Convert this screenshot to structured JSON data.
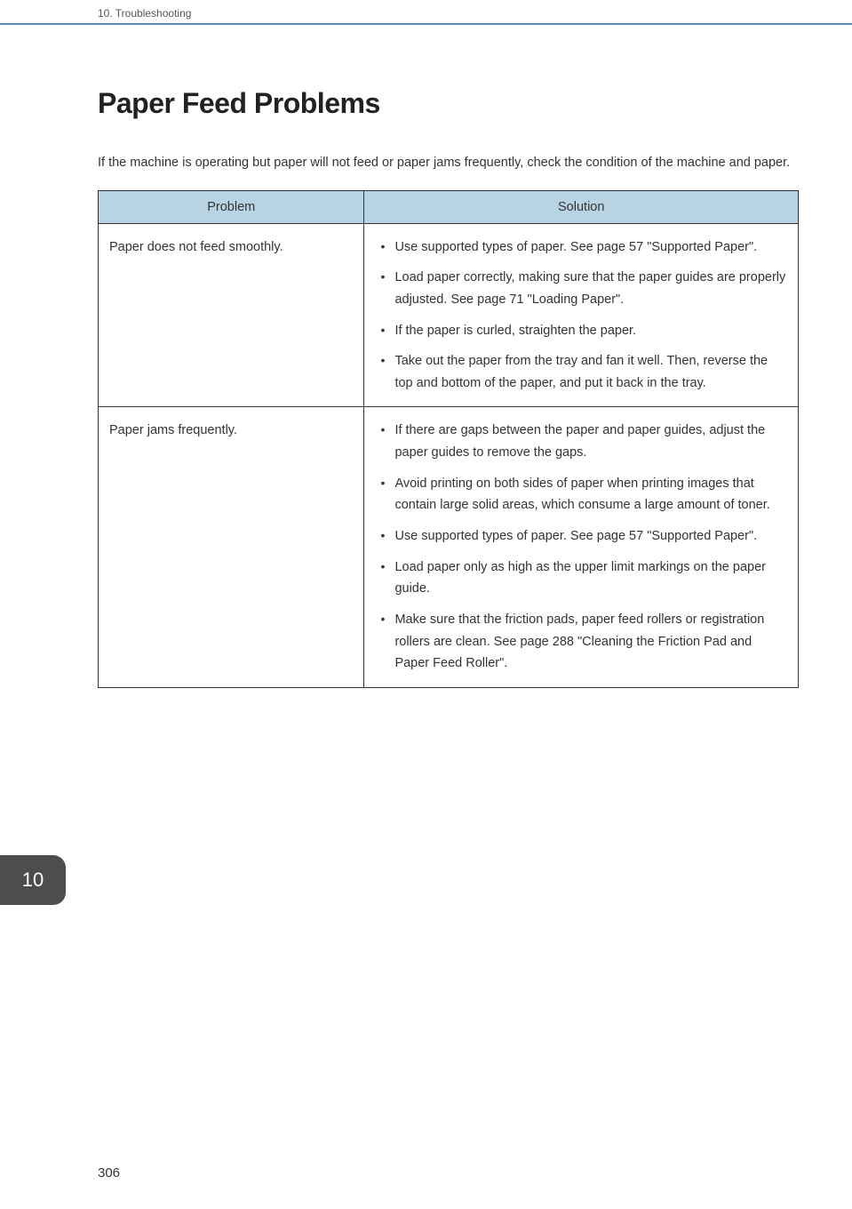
{
  "header": {
    "chapter_label": "10. Troubleshooting"
  },
  "page": {
    "title": "Paper Feed Problems",
    "intro": "If the machine is operating but paper will not feed or paper jams frequently, check the condition of the machine and paper."
  },
  "table": {
    "columns": [
      "Problem",
      "Solution"
    ],
    "header_bg": "#b8d4e3",
    "border_color": "#333333",
    "rows": [
      {
        "problem": "Paper does not feed smoothly.",
        "solutions": [
          "Use supported types of paper. See page 57 \"Supported Paper\".",
          "Load paper correctly, making sure that the paper guides are properly adjusted. See page 71 \"Loading Paper\".",
          "If the paper is curled, straighten the paper.",
          "Take out the paper from the tray and fan it well. Then, reverse the top and bottom of the paper, and put it back in the tray."
        ]
      },
      {
        "problem": "Paper jams frequently.",
        "solutions": [
          "If there are gaps between the paper and paper guides, adjust the paper guides to remove the gaps.",
          "Avoid printing on both sides of paper when printing images that contain large solid areas, which consume a large amount of toner.",
          "Use supported types of paper. See page 57 \"Supported Paper\".",
          "Load paper only as high as the upper limit markings on the paper guide.",
          "Make sure that the friction pads, paper feed rollers or registration rollers are clean. See page 288 \"Cleaning the Friction Pad and Paper Feed Roller\"."
        ]
      }
    ]
  },
  "chapter_tab": {
    "number": "10",
    "bg_color": "#4d4d4d",
    "text_color": "#ffffff"
  },
  "footer": {
    "page_number": "306"
  },
  "colors": {
    "header_rule": "#5a8fb8",
    "text": "#333333",
    "background": "#ffffff"
  }
}
